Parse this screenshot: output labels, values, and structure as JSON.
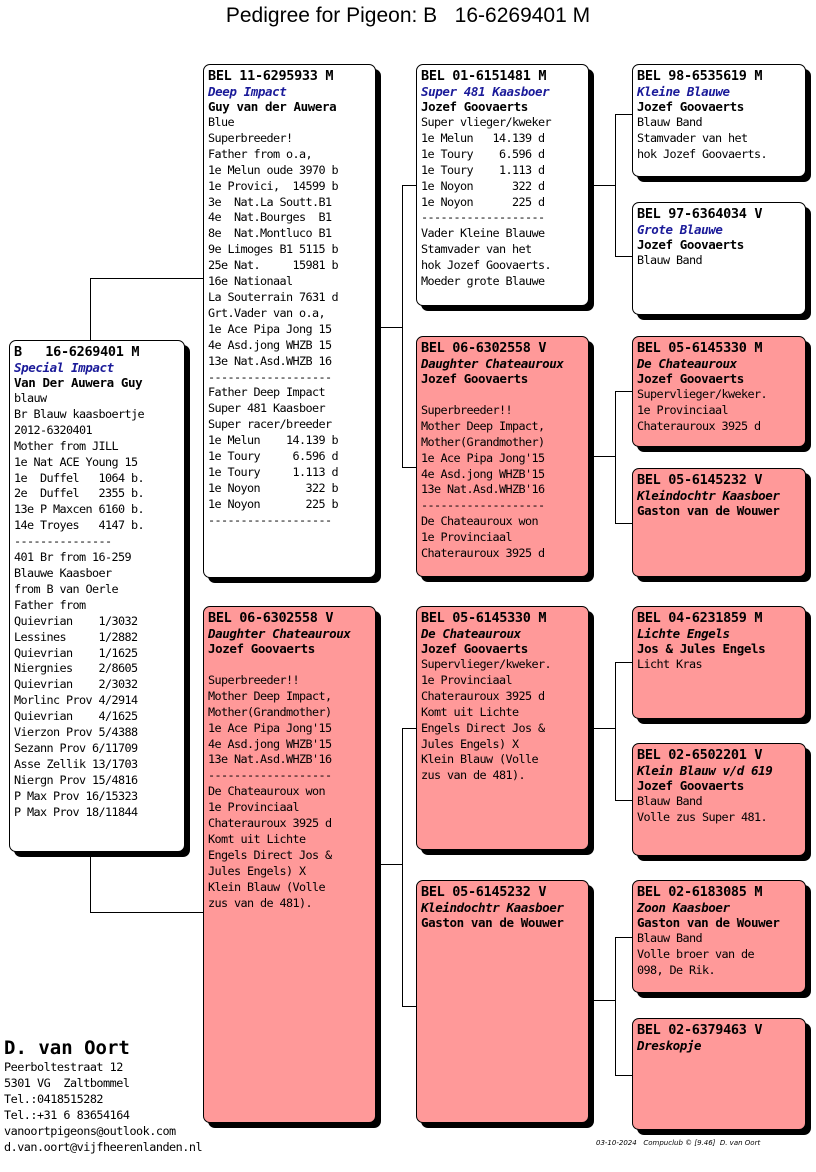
{
  "title": "Pedigree for Pigeon: B   16-6269401 M",
  "breeder": {
    "name": "D. van Oort",
    "lines": [
      "Peerboltestraat 12",
      "5301 VG  Zaltbommel",
      "Tel.:0418515282",
      "Tel.:+31 6 83654164",
      "vanoortpigeons@outlook.com",
      "d.van.oort@vijfheerenlanden.nl"
    ]
  },
  "footer": "03-10-2024   Compuclub © [9.46]  D. van Oort",
  "cards": [
    {
      "id": "subject",
      "color": "#ffffff",
      "ring": "B   16-6269401 M",
      "name": "Special Impact",
      "name_color": "blue",
      "owner": "Van Der Auwera Guy",
      "lines": [
        "blauw",
        "Br Blauw kaasboertje",
        "2012-6320401",
        "Mother from JILL",
        "1e Nat ACE Young 15",
        "1e  Duffel   1064 b.",
        "2e  Duffel   2355 b.",
        "13e P Maxcen 6160 b.",
        "14e Troyes   4147 b.",
        "---------------",
        "401 Br from 16-259",
        "Blauwe Kaasboer",
        "from B van Oerle",
        "Father from",
        "Quievrian    1/3032",
        "Lessines     1/2882",
        "Quievrian    1/1625",
        "Niergnies    2/8605",
        "Quievrian    2/3032",
        "Morlinc Prov 4/2914",
        "Quievrian    4/1625",
        "Vierzon Prov 5/4388",
        "Sezann Prov 6/11709",
        "Asse Zellik 13/1703",
        "Niergn Prov 15/4816",
        "P Max Prov 16/15323",
        "P Max Prov 18/11844"
      ]
    },
    {
      "id": "father",
      "color": "#ffffff",
      "ring": "BEL 11-6295933 M",
      "name": "Deep Impact",
      "name_color": "blue",
      "owner": "Guy van der Auwera",
      "lines": [
        "Blue",
        "Superbreeder!",
        "Father from o.a,",
        "1e Melun oude 3970 b",
        "1e Provici,  14599 b",
        "3e  Nat.La Soutt.B1",
        "4e  Nat.Bourges  B1",
        "8e  Nat.Montluco B1",
        "9e Limoges B1 5115 b",
        "25e Nat.     15981 b",
        "16e Nationaal",
        "La Souterrain 7631 d",
        "Grt.Vader van o.a,",
        "1e Ace Pipa Jong 15",
        "4e Asd.jong WHZB 15",
        "13e Nat.Asd.WHZB 16",
        "-------------------",
        "Father Deep Impact",
        "Super 481 Kaasboer",
        "Super racer/breeder",
        "1e Melun    14.139 b",
        "1e Toury     6.596 d",
        "1e Toury     1.113 d",
        "1e Noyon       322 b",
        "1e Noyon       225 b",
        "-------------------"
      ]
    },
    {
      "id": "mother",
      "color": "#ff9999",
      "ring": "BEL 06-6302558 V",
      "name": "Daughter Chateauroux",
      "name_color": "black",
      "owner": "Jozef Goovaerts",
      "lines": [
        "",
        "Superbreeder!!",
        "Mother Deep Impact,",
        "Mother(Grandmother)",
        "1e Ace Pipa Jong'15",
        "4e Asd.jong WHZB'15",
        "13e Nat.Asd.WHZB'16",
        "-------------------",
        "De Chateauroux won",
        "1e Provinciaal",
        "Chaterauroux 3925 d",
        "Komt uit Lichte",
        "Engels Direct Jos &",
        "Jules Engels) X",
        "Klein Blauw (Volle",
        "zus van de 481)."
      ]
    },
    {
      "id": "ff",
      "color": "#ffffff",
      "ring": "BEL 01-6151481 M",
      "name": "Super 481 Kaasboer",
      "name_color": "blue",
      "owner": "Jozef Goovaerts",
      "lines": [
        "Super vlieger/kweker",
        "1e Melun   14.139 d",
        "1e Toury    6.596 d",
        "1e Toury    1.113 d",
        "1e Noyon      322 d",
        "1e Noyon      225 d",
        "-------------------",
        "Vader Kleine Blauwe",
        "Stamvader van het",
        "hok Jozef Goovaerts.",
        "Moeder grote Blauwe"
      ]
    },
    {
      "id": "fm",
      "color": "#ff9999",
      "ring": "BEL 06-6302558 V",
      "name": "Daughter Chateauroux",
      "name_color": "black",
      "owner": "Jozef Goovaerts",
      "lines": [
        "",
        "Superbreeder!!",
        "Mother Deep Impact,",
        "Mother(Grandmother)",
        "1e Ace Pipa Jong'15",
        "4e Asd.jong WHZB'15",
        "13e Nat.Asd.WHZB'16",
        "-------------------",
        "De Chateauroux won",
        "1e Provinciaal",
        "Chaterauroux 3925 d"
      ]
    },
    {
      "id": "mf",
      "color": "#ff9999",
      "ring": "BEL 05-6145330 M",
      "name": "De Chateauroux",
      "name_color": "black",
      "owner": "Jozef Goovaerts",
      "lines": [
        "Supervlieger/kweker.",
        "1e Provinciaal",
        "Chaterauroux 3925 d",
        "Komt uit Lichte",
        "Engels Direct Jos &",
        "Jules Engels) X",
        "Klein Blauw (Volle",
        "zus van de 481)."
      ]
    },
    {
      "id": "mm",
      "color": "#ff9999",
      "ring": "BEL 05-6145232 V",
      "name": "Kleindochtr Kaasboer",
      "name_color": "black",
      "owner": "Gaston van de Wouwer",
      "lines": []
    },
    {
      "id": "fff",
      "color": "#ffffff",
      "ring": "BEL 98-6535619 M",
      "name": "Kleine Blauwe",
      "name_color": "blue",
      "owner": "Jozef Goovaerts",
      "lines": [
        "Blauw Band",
        "Stamvader van het",
        "hok Jozef Goovaerts."
      ]
    },
    {
      "id": "ffm",
      "color": "#ffffff",
      "ring": "BEL 97-6364034 V",
      "name": "Grote Blauwe",
      "name_color": "blue",
      "owner": "Jozef Goovaerts",
      "lines": [
        "Blauw Band"
      ]
    },
    {
      "id": "fmf",
      "color": "#ff9999",
      "ring": "BEL 05-6145330 M",
      "name": "De Chateauroux",
      "name_color": "black",
      "owner": "Jozef Goovaerts",
      "lines": [
        "Supervlieger/kweker.",
        "1e Provinciaal",
        "Chaterauroux 3925 d"
      ]
    },
    {
      "id": "fmm",
      "color": "#ff9999",
      "ring": "BEL 05-6145232 V",
      "name": "Kleindochtr Kaasboer",
      "name_color": "black",
      "owner": "Gaston van de Wouwer",
      "lines": []
    },
    {
      "id": "mff",
      "color": "#ff9999",
      "ring": "BEL 04-6231859 M",
      "name": "Lichte Engels",
      "name_color": "black",
      "owner": "Jos & Jules Engels",
      "lines": [
        "Licht Kras"
      ]
    },
    {
      "id": "mfm",
      "color": "#ff9999",
      "ring": "BEL 02-6502201 V",
      "name": "Klein Blauw v/d 619",
      "name_color": "black",
      "owner": "Jozef Goovaerts",
      "lines": [
        "Blauw Band",
        "Volle zus Super 481."
      ]
    },
    {
      "id": "mmf",
      "color": "#ff9999",
      "ring": "BEL 02-6183085 M",
      "name": "Zoon Kaasboer",
      "name_color": "black",
      "owner": "Gaston van de Wouwer",
      "lines": [
        "Blauw Band",
        "Volle broer van de",
        "098, De Rik."
      ]
    },
    {
      "id": "mmm",
      "color": "#ff9999",
      "ring": "BEL 02-6379463 V",
      "name": "Dreskopje",
      "name_color": "black",
      "owner": "",
      "lines": []
    }
  ]
}
